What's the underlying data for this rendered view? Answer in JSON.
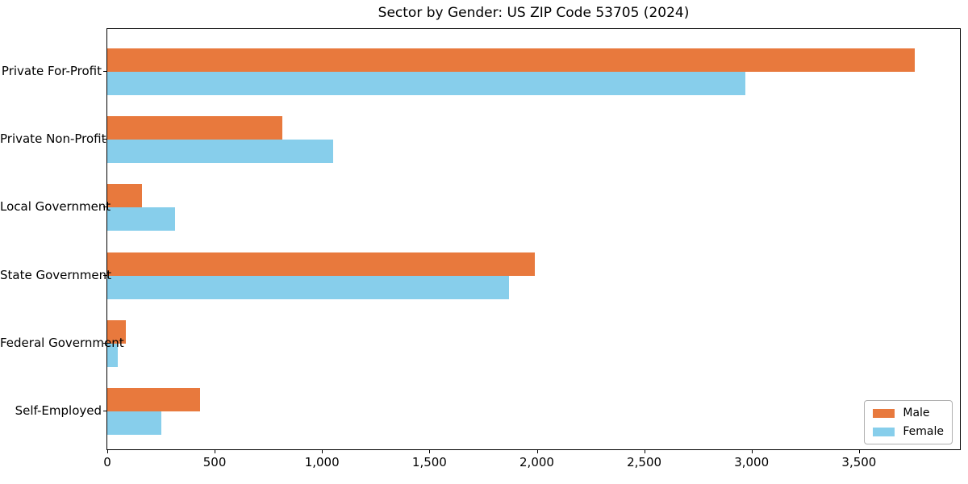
{
  "chart_data": {
    "type": "bar",
    "orientation": "horizontal",
    "title": "Sector by Gender: US ZIP Code 53705 (2024)",
    "categories": [
      "Private For-Profit",
      "Private Non-Profit",
      "Local Government",
      "State Government",
      "Federal Government",
      "Self-Employed"
    ],
    "series": [
      {
        "name": "Male",
        "color": "#e8793d",
        "values": [
          3760,
          815,
          160,
          1990,
          85,
          430
        ]
      },
      {
        "name": "Female",
        "color": "#87ceeb",
        "values": [
          2970,
          1050,
          315,
          1870,
          50,
          250
        ]
      }
    ],
    "xlabel": "",
    "ylabel": "",
    "xlim": [
      0,
      3970
    ],
    "xticks": [
      0,
      500,
      1000,
      1500,
      2000,
      2500,
      3000,
      3500
    ],
    "xtick_labels": [
      "0",
      "500",
      "1,000",
      "1,500",
      "2,000",
      "2,500",
      "3,000",
      "3,500"
    ],
    "grid": false,
    "legend_position": "lower right",
    "background_color": "#ffffff",
    "spine_color": "#000000"
  }
}
